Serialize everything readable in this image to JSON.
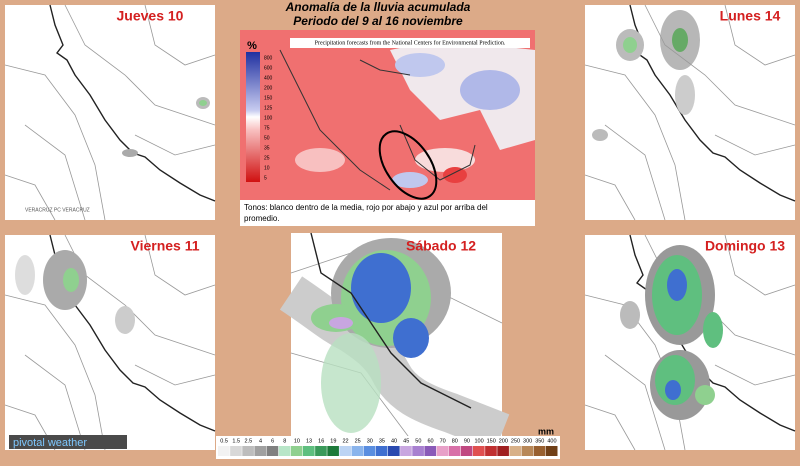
{
  "title": "Anomalía de la lluvia acumulada",
  "subtitle": "Periodo del  9 al 16 noviembre",
  "anomaly_map": {
    "source": "Precipitation forecasts from the National Centers for Environmental Prediction.",
    "unit": "%",
    "scale": [
      "800",
      "600",
      "400",
      "200",
      "150",
      "125",
      "100",
      "75",
      "50",
      "35",
      "25",
      "10",
      "5"
    ],
    "caption": "Tonos: blanco dentro de la media, rojo por abajo y azul por arriba del promedio."
  },
  "panels": [
    {
      "day": "Jueves 10"
    },
    {
      "day": "Lunes 14"
    },
    {
      "day": "Viernes 11"
    },
    {
      "day": "Sábado 12"
    },
    {
      "day": "Domingo 13"
    }
  ],
  "watermark": "pivotal weather",
  "precip_legend": {
    "unit": "mm",
    "labels": [
      "0.5",
      "1.5",
      "2.5",
      "4",
      "6",
      "8",
      "10",
      "13",
      "16",
      "19",
      "22",
      "25",
      "30",
      "35",
      "40",
      "45",
      "50",
      "60",
      "70",
      "80",
      "90",
      "100",
      "150",
      "200",
      "250",
      "300",
      "350",
      "400"
    ]
  }
}
